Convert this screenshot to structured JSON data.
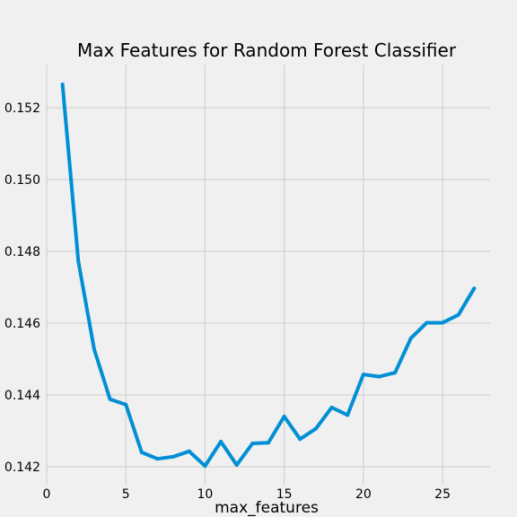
{
  "chart_data": {
    "type": "line",
    "title": "Max Features for Random Forest Classifier",
    "xlabel": "max_features",
    "ylabel": "",
    "xlim": [
      0,
      28
    ],
    "ylim": [
      0.1415,
      0.1532
    ],
    "xticks": [
      0,
      5,
      10,
      15,
      20,
      25
    ],
    "yticks": [
      0.142,
      0.144,
      0.146,
      0.148,
      0.15,
      0.152
    ],
    "ytick_labels": [
      "0.142",
      "0.144",
      "0.146",
      "0.148",
      "0.150",
      "0.152"
    ],
    "grid": true,
    "series": [
      {
        "color": "#008fd5",
        "x": [
          1,
          2,
          3,
          4,
          5,
          6,
          7,
          8,
          9,
          10,
          11,
          12,
          13,
          14,
          15,
          16,
          17,
          18,
          19,
          20,
          21,
          22,
          23,
          24,
          25,
          26,
          27
        ],
        "y": [
          0.15265,
          0.14772,
          0.14527,
          0.14388,
          0.14373,
          0.1424,
          0.14222,
          0.14228,
          0.14243,
          0.14202,
          0.1427,
          0.14205,
          0.14265,
          0.14267,
          0.1434,
          0.14277,
          0.14306,
          0.14365,
          0.14344,
          0.14457,
          0.14451,
          0.14462,
          0.14558,
          0.14601,
          0.14601,
          0.14623,
          0.14697
        ]
      }
    ]
  }
}
